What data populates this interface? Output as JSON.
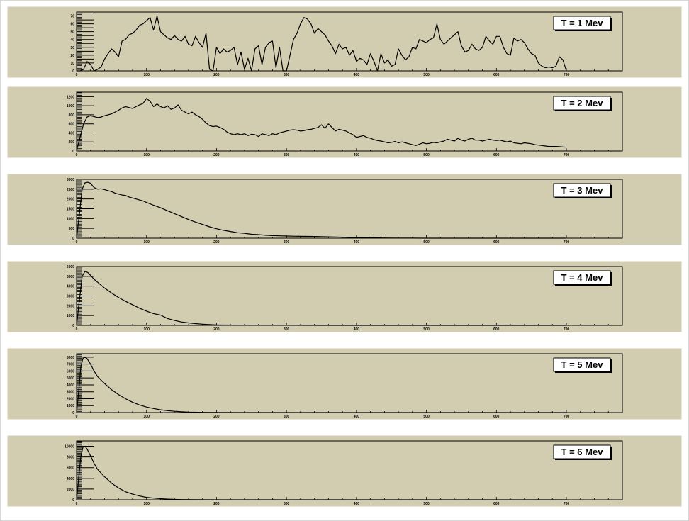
{
  "chart_data": [
    {
      "type": "line",
      "legend": "T = 1 Mev",
      "xlim": [
        0,
        780
      ],
      "ylim": [
        0,
        75
      ],
      "x_ticks": [
        0,
        100,
        200,
        300,
        400,
        500,
        600,
        700
      ],
      "y_ticks": [
        0,
        5,
        10,
        15,
        20,
        25,
        30,
        35,
        40,
        45,
        50,
        55,
        60,
        65,
        70
      ],
      "y_tick_labels": [
        "0",
        "",
        "10",
        "",
        "20",
        "",
        "30",
        "",
        "40",
        "",
        "50",
        "",
        "60",
        "",
        "70"
      ],
      "x": [
        0,
        5,
        10,
        15,
        20,
        25,
        30,
        35,
        40,
        45,
        50,
        55,
        60,
        65,
        70,
        75,
        80,
        85,
        90,
        95,
        100,
        105,
        110,
        115,
        120,
        125,
        130,
        135,
        140,
        145,
        150,
        155,
        160,
        165,
        170,
        175,
        180,
        185,
        190,
        195,
        200,
        205,
        210,
        215,
        220,
        225,
        230,
        235,
        240,
        245,
        250,
        255,
        260,
        265,
        270,
        275,
        280,
        285,
        290,
        295,
        300,
        305,
        310,
        315,
        320,
        325,
        330,
        335,
        340,
        345,
        350,
        355,
        360,
        365,
        370,
        375,
        380,
        385,
        390,
        395,
        400,
        405,
        410,
        415,
        420,
        425,
        430,
        435,
        440,
        445,
        450,
        455,
        460,
        465,
        470,
        475,
        480,
        485,
        490,
        495,
        500,
        505,
        510,
        515,
        520,
        525,
        530,
        535,
        540,
        545,
        550,
        555,
        560,
        565,
        570,
        575,
        580,
        585,
        590,
        595,
        600,
        605,
        610,
        615,
        620,
        625,
        630,
        635,
        640,
        645,
        650,
        655,
        660,
        665,
        670,
        675,
        680,
        685,
        690,
        695,
        700
      ],
      "y": [
        0,
        0,
        2,
        12,
        8,
        0,
        2,
        5,
        15,
        22,
        28,
        24,
        18,
        38,
        40,
        46,
        48,
        52,
        58,
        60,
        64,
        68,
        52,
        70,
        50,
        46,
        42,
        40,
        45,
        40,
        38,
        44,
        34,
        32,
        44,
        36,
        30,
        48,
        2,
        0,
        30,
        22,
        28,
        24,
        26,
        30,
        8,
        24,
        2,
        16,
        0,
        28,
        32,
        8,
        30,
        36,
        38,
        4,
        30,
        0,
        0,
        20,
        40,
        48,
        60,
        68,
        66,
        60,
        48,
        54,
        50,
        46,
        38,
        32,
        22,
        34,
        28,
        30,
        20,
        26,
        12,
        16,
        14,
        8,
        22,
        12,
        0,
        22,
        10,
        14,
        6,
        8,
        28,
        20,
        14,
        18,
        30,
        28,
        40,
        38,
        36,
        40,
        42,
        60,
        40,
        34,
        38,
        42,
        46,
        50,
        32,
        24,
        26,
        34,
        28,
        26,
        30,
        44,
        38,
        34,
        44,
        44,
        30,
        22,
        20,
        42,
        38,
        40,
        36,
        28,
        22,
        20,
        10,
        6,
        4,
        5,
        4,
        6,
        18,
        14,
        0
      ]
    },
    {
      "type": "line",
      "legend": "T = 2 Mev",
      "xlim": [
        0,
        780
      ],
      "ylim": [
        0,
        1300
      ],
      "x_ticks": [
        0,
        100,
        200,
        300,
        400,
        500,
        600,
        700
      ],
      "y_ticks": [
        0,
        200,
        400,
        600,
        800,
        1000,
        1200
      ],
      "x": [
        0,
        5,
        10,
        15,
        20,
        25,
        30,
        35,
        40,
        45,
        50,
        55,
        60,
        65,
        70,
        75,
        80,
        85,
        90,
        95,
        100,
        105,
        110,
        115,
        120,
        125,
        130,
        135,
        140,
        145,
        150,
        155,
        160,
        165,
        170,
        175,
        180,
        185,
        190,
        195,
        200,
        205,
        210,
        215,
        220,
        225,
        230,
        235,
        240,
        245,
        250,
        255,
        260,
        265,
        270,
        275,
        280,
        285,
        290,
        295,
        300,
        305,
        310,
        315,
        320,
        325,
        330,
        335,
        340,
        345,
        350,
        355,
        360,
        365,
        370,
        375,
        380,
        385,
        390,
        395,
        400,
        405,
        410,
        415,
        420,
        425,
        430,
        435,
        440,
        445,
        450,
        455,
        460,
        465,
        470,
        475,
        480,
        485,
        490,
        495,
        500,
        505,
        510,
        515,
        520,
        525,
        530,
        535,
        540,
        545,
        550,
        555,
        560,
        565,
        570,
        575,
        580,
        585,
        590,
        595,
        600,
        605,
        610,
        615,
        620,
        625,
        630,
        635,
        640,
        645,
        650,
        655,
        660,
        665,
        670,
        675,
        680,
        685,
        690,
        695,
        700
      ],
      "y": [
        0,
        300,
        600,
        750,
        780,
        760,
        740,
        750,
        780,
        800,
        820,
        860,
        900,
        950,
        980,
        960,
        940,
        980,
        1020,
        1050,
        1160,
        1100,
        980,
        1040,
        980,
        950,
        1000,
        920,
        950,
        1020,
        900,
        860,
        820,
        860,
        800,
        760,
        700,
        620,
        560,
        540,
        550,
        520,
        480,
        420,
        380,
        360,
        380,
        360,
        380,
        340,
        370,
        360,
        320,
        380,
        360,
        340,
        380,
        360,
        400,
        420,
        440,
        460,
        470,
        460,
        440,
        450,
        470,
        480,
        500,
        520,
        580,
        500,
        600,
        520,
        440,
        480,
        460,
        440,
        400,
        360,
        300,
        320,
        340,
        300,
        280,
        250,
        230,
        220,
        200,
        180,
        190,
        210,
        180,
        200,
        180,
        160,
        140,
        120,
        150,
        180,
        160,
        170,
        190,
        180,
        200,
        220,
        260,
        240,
        220,
        280,
        240,
        220,
        260,
        280,
        240,
        240,
        220,
        240,
        260,
        240,
        230,
        240,
        220,
        200,
        220,
        180,
        170,
        160,
        180,
        170,
        160,
        140,
        130,
        120,
        110,
        100,
        100,
        100,
        95,
        90,
        85
      ]
    },
    {
      "type": "line",
      "legend": "T = 3 Mev",
      "xlim": [
        0,
        780
      ],
      "ylim": [
        0,
        3000
      ],
      "x_ticks": [
        0,
        100,
        200,
        300,
        400,
        500,
        600,
        700
      ],
      "y_ticks": [
        0,
        500,
        1000,
        1500,
        2000,
        2500,
        3000
      ],
      "x": [
        0,
        4,
        8,
        12,
        16,
        20,
        25,
        30,
        35,
        40,
        45,
        50,
        55,
        60,
        65,
        70,
        75,
        80,
        85,
        90,
        95,
        100,
        110,
        120,
        130,
        140,
        150,
        160,
        170,
        180,
        190,
        200,
        210,
        220,
        230,
        240,
        250,
        260,
        270,
        280,
        290,
        300,
        310,
        320,
        330,
        340,
        350,
        360,
        370,
        380,
        390,
        400,
        420,
        440,
        460,
        480,
        500,
        550,
        600,
        650,
        700
      ],
      "y": [
        0,
        1200,
        2500,
        2820,
        2850,
        2800,
        2580,
        2500,
        2520,
        2480,
        2420,
        2380,
        2300,
        2250,
        2200,
        2180,
        2100,
        2050,
        2000,
        1950,
        1900,
        1820,
        1680,
        1550,
        1400,
        1250,
        1100,
        950,
        820,
        700,
        580,
        480,
        400,
        340,
        280,
        250,
        200,
        180,
        150,
        130,
        120,
        110,
        100,
        95,
        90,
        85,
        80,
        70,
        60,
        50,
        40,
        30,
        20,
        10,
        5,
        2,
        0,
        0,
        0,
        0,
        0
      ]
    },
    {
      "type": "line",
      "legend": "T = 4 Mev",
      "xlim": [
        0,
        780
      ],
      "ylim": [
        0,
        6000
      ],
      "x_ticks": [
        0,
        100,
        200,
        300,
        400,
        500,
        600,
        700
      ],
      "y_ticks": [
        0,
        1000,
        2000,
        3000,
        4000,
        5000,
        6000
      ],
      "x": [
        0,
        4,
        8,
        12,
        16,
        20,
        25,
        30,
        35,
        40,
        50,
        60,
        70,
        80,
        90,
        100,
        110,
        120,
        130,
        140,
        150,
        160,
        170,
        180,
        190,
        200,
        220,
        240,
        260,
        280,
        300,
        350,
        400,
        500,
        600,
        700
      ],
      "y": [
        0,
        2500,
        5000,
        5500,
        5400,
        5100,
        4700,
        4400,
        4100,
        3800,
        3300,
        2850,
        2450,
        2100,
        1750,
        1450,
        1200,
        1050,
        700,
        500,
        350,
        250,
        180,
        120,
        80,
        50,
        30,
        20,
        15,
        10,
        5,
        0,
        0,
        0,
        0,
        0
      ]
    },
    {
      "type": "line",
      "legend": "T = 5 Mev",
      "xlim": [
        0,
        780
      ],
      "ylim": [
        0,
        8500
      ],
      "x_ticks": [
        0,
        100,
        200,
        300,
        400,
        500,
        600,
        700
      ],
      "y_ticks": [
        0,
        1000,
        2000,
        3000,
        4000,
        5000,
        6000,
        7000,
        8000
      ],
      "x": [
        0,
        3,
        6,
        9,
        12,
        15,
        20,
        25,
        30,
        40,
        50,
        60,
        70,
        80,
        90,
        100,
        110,
        120,
        130,
        140,
        150,
        160,
        180,
        200,
        250,
        300,
        400,
        500,
        600,
        700
      ],
      "y": [
        0,
        3000,
        6500,
        7800,
        8000,
        7800,
        7000,
        6000,
        5200,
        4200,
        3300,
        2600,
        2000,
        1500,
        1100,
        800,
        580,
        400,
        280,
        180,
        120,
        70,
        30,
        10,
        0,
        0,
        0,
        0,
        0,
        0
      ]
    },
    {
      "type": "line",
      "legend": "T = 6 Mev",
      "xlim": [
        0,
        780
      ],
      "ylim": [
        0,
        11000
      ],
      "x_ticks": [
        0,
        100,
        200,
        300,
        400,
        500,
        600,
        700
      ],
      "y_ticks": [
        0,
        2000,
        4000,
        6000,
        8000,
        10000
      ],
      "x": [
        0,
        3,
        6,
        9,
        12,
        15,
        20,
        25,
        30,
        40,
        50,
        60,
        70,
        80,
        90,
        100,
        110,
        120,
        130,
        140,
        150,
        170,
        200,
        250,
        300,
        400,
        500,
        600,
        700
      ],
      "y": [
        0,
        4000,
        8000,
        9800,
        10000,
        9500,
        8200,
        6800,
        5700,
        4300,
        3100,
        2200,
        1500,
        1050,
        700,
        450,
        300,
        200,
        120,
        70,
        40,
        15,
        0,
        0,
        0,
        0,
        0,
        0,
        0
      ]
    }
  ]
}
